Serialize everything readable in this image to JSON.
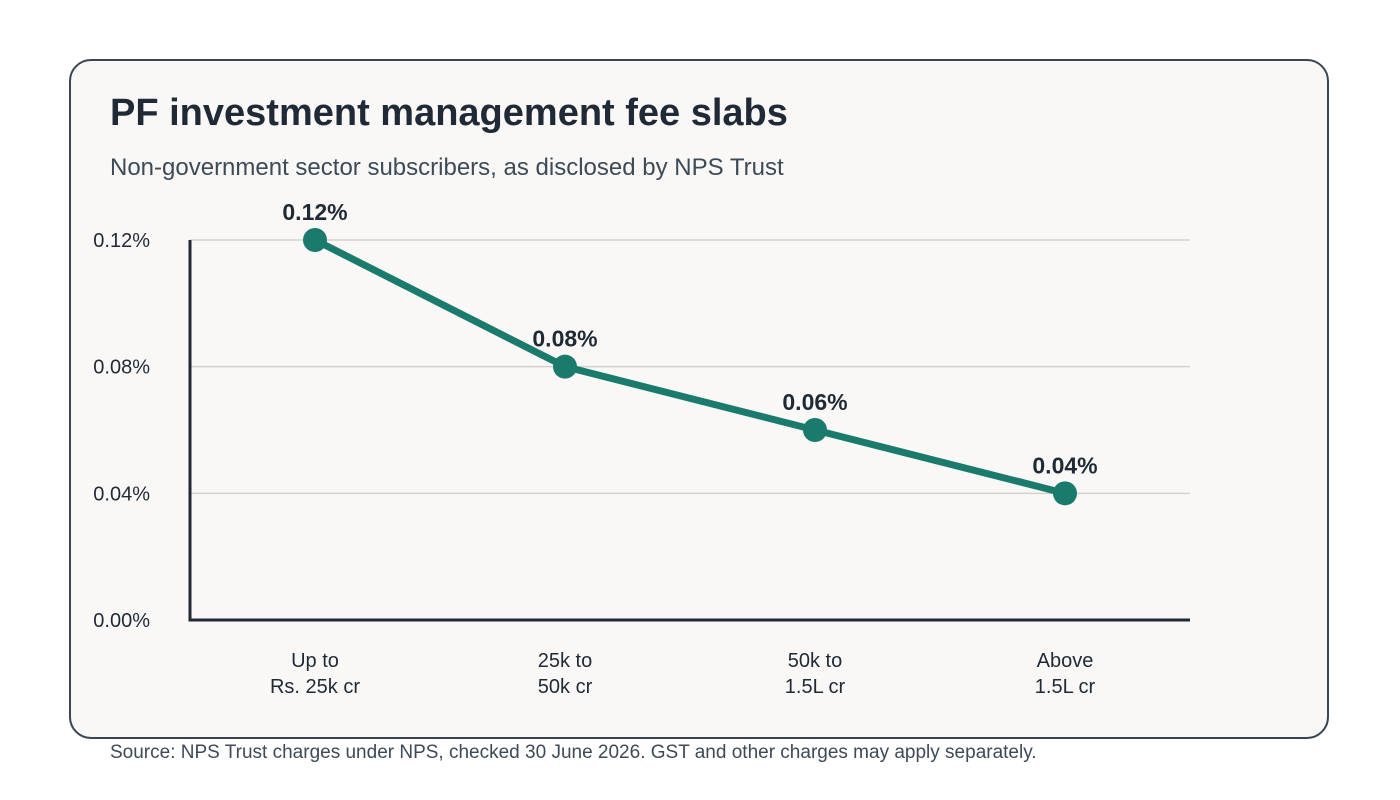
{
  "title": "PF investment management fee slabs",
  "subtitle": "Non-government sector subscribers, as disclosed by NPS Trust",
  "source": "Source: NPS Trust charges under NPS, checked 30 June 2026. GST and other charges may apply separately.",
  "colors": {
    "line": "#1a7a6c",
    "axis": "#1f2a36",
    "grid": "#d4d2cd",
    "card_bg": "#f9f8f6",
    "card_border": "#3a4553"
  },
  "chart_data": {
    "type": "line",
    "title": "PF investment management fee slabs",
    "subtitle": "Non-government sector subscribers, as disclosed by NPS Trust",
    "categories": [
      [
        "Up to",
        "Rs. 25k cr"
      ],
      [
        "25k to",
        "50k cr"
      ],
      [
        "50k to",
        "1.5L cr"
      ],
      [
        "Above",
        "1.5L cr"
      ]
    ],
    "values": [
      0.12,
      0.08,
      0.06,
      0.04
    ],
    "data_labels": [
      "0.12%",
      "0.08%",
      "0.06%",
      "0.04%"
    ],
    "ylim": [
      0,
      0.12
    ],
    "yticks": [
      0,
      0.04,
      0.08,
      0.12
    ],
    "ytick_labels": [
      "0.00%",
      "0.04%",
      "0.08%",
      "0.12%"
    ],
    "xlabel": "",
    "ylabel": "",
    "grid": true,
    "legend": "none"
  }
}
